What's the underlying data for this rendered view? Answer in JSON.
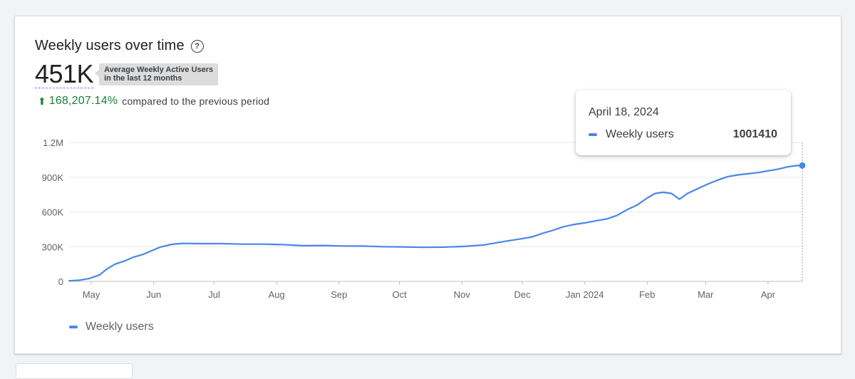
{
  "card": {
    "title": "Weekly users over time",
    "help_icon": "help-circle-icon",
    "metric_value": "451K",
    "metric_tooltip_line1": "Average Weekly Active Users",
    "metric_tooltip_line2": "in the last 12 months",
    "change_value": "168,207.14%",
    "change_caption": "compared to the previous period"
  },
  "hover_tooltip": {
    "date": "April 18, 2024",
    "series": "Weekly users",
    "value": "1001410"
  },
  "legend": {
    "label": "Weekly users"
  },
  "colors": {
    "line": "#4a86e8",
    "positive": "#188038",
    "grid": "#e8eaed",
    "axis_text": "#5f6368"
  },
  "chart_data": {
    "type": "line",
    "title": "Weekly users over time",
    "xlabel": "",
    "ylabel": "",
    "ylim": [
      0,
      1200000
    ],
    "y_ticks": [
      {
        "value": 0,
        "label": "0"
      },
      {
        "value": 300000,
        "label": "300K"
      },
      {
        "value": 600000,
        "label": "600K"
      },
      {
        "value": 900000,
        "label": "900K"
      },
      {
        "value": 1200000,
        "label": "1.2M"
      }
    ],
    "x_range": [
      "2023-04-20",
      "2024-04-18"
    ],
    "x_ticks": [
      {
        "date": "2023-05-01",
        "label": "May"
      },
      {
        "date": "2023-06-01",
        "label": "Jun"
      },
      {
        "date": "2023-07-01",
        "label": "Jul"
      },
      {
        "date": "2023-08-01",
        "label": "Aug"
      },
      {
        "date": "2023-09-01",
        "label": "Sep"
      },
      {
        "date": "2023-10-01",
        "label": "Oct"
      },
      {
        "date": "2023-11-01",
        "label": "Nov"
      },
      {
        "date": "2023-12-01",
        "label": "Dec"
      },
      {
        "date": "2024-01-01",
        "label": "Jan 2024"
      },
      {
        "date": "2024-02-01",
        "label": "Feb"
      },
      {
        "date": "2024-03-01",
        "label": "Mar"
      },
      {
        "date": "2024-04-01",
        "label": "Apr"
      }
    ],
    "series": [
      {
        "name": "Weekly users",
        "points": [
          [
            "2023-04-20",
            5000
          ],
          [
            "2023-04-25",
            10000
          ],
          [
            "2023-04-30",
            25000
          ],
          [
            "2023-05-05",
            55000
          ],
          [
            "2023-05-09",
            110000
          ],
          [
            "2023-05-13",
            150000
          ],
          [
            "2023-05-18",
            180000
          ],
          [
            "2023-05-22",
            210000
          ],
          [
            "2023-05-27",
            235000
          ],
          [
            "2023-05-31",
            265000
          ],
          [
            "2023-06-04",
            295000
          ],
          [
            "2023-06-10",
            320000
          ],
          [
            "2023-06-15",
            328000
          ],
          [
            "2023-06-25",
            326000
          ],
          [
            "2023-07-05",
            326000
          ],
          [
            "2023-07-15",
            322000
          ],
          [
            "2023-07-25",
            322000
          ],
          [
            "2023-08-04",
            318000
          ],
          [
            "2023-08-14",
            308000
          ],
          [
            "2023-08-24",
            310000
          ],
          [
            "2023-09-03",
            306000
          ],
          [
            "2023-09-13",
            305000
          ],
          [
            "2023-09-23",
            300000
          ],
          [
            "2023-10-03",
            298000
          ],
          [
            "2023-10-13",
            294000
          ],
          [
            "2023-10-23",
            296000
          ],
          [
            "2023-11-02",
            302000
          ],
          [
            "2023-11-12",
            315000
          ],
          [
            "2023-11-22",
            345000
          ],
          [
            "2023-12-01",
            370000
          ],
          [
            "2023-12-06",
            385000
          ],
          [
            "2023-12-11",
            415000
          ],
          [
            "2023-12-16",
            440000
          ],
          [
            "2023-12-21",
            470000
          ],
          [
            "2023-12-26",
            490000
          ],
          [
            "2024-01-01",
            505000
          ],
          [
            "2024-01-07",
            525000
          ],
          [
            "2024-01-12",
            540000
          ],
          [
            "2024-01-17",
            570000
          ],
          [
            "2024-01-22",
            620000
          ],
          [
            "2024-01-27",
            660000
          ],
          [
            "2024-02-01",
            720000
          ],
          [
            "2024-02-05",
            760000
          ],
          [
            "2024-02-09",
            770000
          ],
          [
            "2024-02-13",
            760000
          ],
          [
            "2024-02-17",
            710000
          ],
          [
            "2024-02-21",
            760000
          ],
          [
            "2024-02-26",
            800000
          ],
          [
            "2024-03-02",
            840000
          ],
          [
            "2024-03-07",
            875000
          ],
          [
            "2024-03-12",
            905000
          ],
          [
            "2024-03-17",
            920000
          ],
          [
            "2024-03-22",
            930000
          ],
          [
            "2024-03-27",
            940000
          ],
          [
            "2024-04-01",
            955000
          ],
          [
            "2024-04-06",
            970000
          ],
          [
            "2024-04-11",
            990000
          ],
          [
            "2024-04-15",
            1000000
          ],
          [
            "2024-04-18",
            1001410
          ]
        ]
      }
    ],
    "highlighted_point": [
      "2024-04-18",
      1001410
    ],
    "grid": true,
    "legend_position": "bottom-left"
  }
}
